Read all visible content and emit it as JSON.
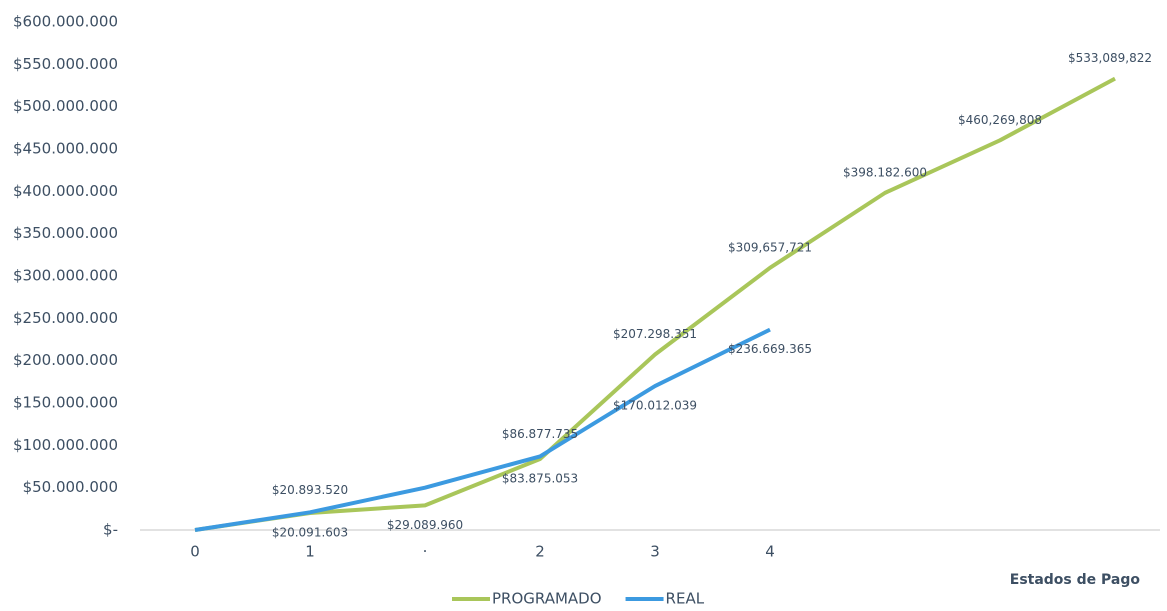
{
  "chart_data": {
    "type": "line",
    "x_label": "Estados de Pago",
    "categories": [
      "0",
      "1",
      "·",
      "2",
      "3",
      "4",
      null,
      null,
      null
    ],
    "series": [
      {
        "name": "PROGRAMADO",
        "color": "#a9c65a",
        "values": [
          0,
          20091603,
          29089960,
          83875053,
          207298351,
          309657721,
          398182600,
          460269808,
          533089822
        ],
        "value_labels": [
          null,
          "$20.091.603",
          "$29.089.960",
          "$83.875.053",
          "$207.298.351",
          "$309,657,721",
          "$398.182.600",
          "$460,269,808",
          "$533,089,822"
        ]
      },
      {
        "name": "REAL",
        "color": "#3c9ae0",
        "values": [
          0,
          20893520,
          50000000,
          86877735,
          170012039,
          236669365,
          null,
          null,
          null
        ],
        "value_labels": [
          null,
          "$20.893.520",
          null,
          "$86.877.735",
          "$170.012.039",
          "$236.669.365",
          null,
          null,
          null
        ]
      }
    ],
    "ylim": [
      0,
      600000000
    ],
    "yticks": [
      {
        "value": 0,
        "label": "$-"
      },
      {
        "value": 50000000,
        "label": "$50.000.000"
      },
      {
        "value": 100000000,
        "label": "$100.000.000"
      },
      {
        "value": 150000000,
        "label": "$150.000.000"
      },
      {
        "value": 200000000,
        "label": "$200.000.000"
      },
      {
        "value": 250000000,
        "label": "$250.000.000"
      },
      {
        "value": 300000000,
        "label": "$300.000.000"
      },
      {
        "value": 350000000,
        "label": "$350.000.000"
      },
      {
        "value": 400000000,
        "label": "$400.000.000"
      },
      {
        "value": 450000000,
        "label": "$450.000.000"
      },
      {
        "value": 500000000,
        "label": "$500.000.000"
      },
      {
        "value": 550000000,
        "label": "$550.000.000"
      },
      {
        "value": 600000000,
        "label": "$600.000.000"
      }
    ],
    "legend": "bottom"
  }
}
